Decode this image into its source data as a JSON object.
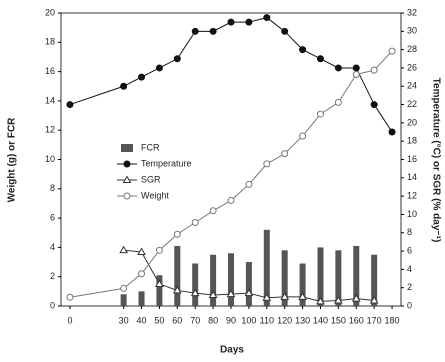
{
  "chart_data": {
    "type": "combo",
    "x_label": "Days",
    "y_label": "Weight (g) or FCR",
    "y2_label": "Temperature (°C) or SGR (% day⁻¹)",
    "x": [
      0,
      30,
      40,
      50,
      60,
      70,
      80,
      90,
      100,
      110,
      120,
      130,
      140,
      150,
      160,
      170,
      180
    ],
    "xlim": [
      -5,
      185
    ],
    "xticks": [
      0,
      30,
      40,
      50,
      60,
      70,
      80,
      90,
      100,
      110,
      120,
      130,
      140,
      150,
      160,
      170,
      180
    ],
    "ylim": [
      0,
      20
    ],
    "yticks": [
      0,
      2,
      4,
      6,
      8,
      10,
      12,
      14,
      16,
      18,
      20
    ],
    "y2lim": [
      0,
      32
    ],
    "y2ticks": [
      0,
      2,
      4,
      6,
      8,
      10,
      12,
      14,
      16,
      18,
      20,
      22,
      24,
      26,
      28,
      30,
      32
    ],
    "series": [
      {
        "name": "FCR",
        "type": "bar",
        "axis": "y",
        "color": "#555555",
        "values": [
          null,
          0.8,
          1.0,
          2.1,
          4.1,
          2.9,
          3.5,
          3.6,
          3.0,
          5.2,
          3.8,
          2.9,
          4.0,
          3.8,
          4.1,
          3.5,
          null
        ]
      },
      {
        "name": "Temperature",
        "type": "line",
        "axis": "y2",
        "color": "#111111",
        "marker": "filled-circle",
        "values": [
          22,
          24,
          25,
          26,
          27,
          30,
          30,
          31,
          31,
          31.5,
          30,
          28,
          27,
          26,
          26,
          22,
          19
        ]
      },
      {
        "name": "SGR",
        "type": "line",
        "axis": "y2",
        "color": "#333333",
        "marker": "open-triangle",
        "values": [
          null,
          6.1,
          5.9,
          2.4,
          1.7,
          1.4,
          1.2,
          1.3,
          1.4,
          0.9,
          1.0,
          1.0,
          0.5,
          0.6,
          0.8,
          0.6,
          null
        ]
      },
      {
        "name": "Weight",
        "type": "line",
        "axis": "y",
        "color": "#777777",
        "marker": "open-circle",
        "values": [
          0.6,
          1.2,
          2.2,
          3.8,
          4.9,
          5.7,
          6.5,
          7.2,
          8.3,
          9.7,
          10.4,
          11.6,
          13.1,
          13.9,
          15.8,
          16.1,
          17.4
        ]
      }
    ]
  }
}
